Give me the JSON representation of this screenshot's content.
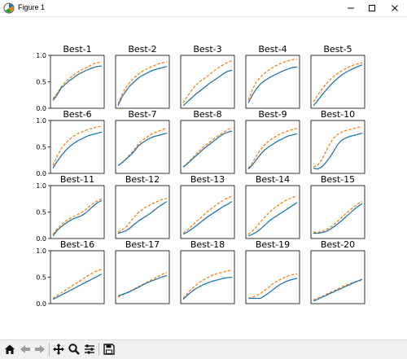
{
  "window": {
    "title": "Figure 1"
  },
  "icons": {
    "app": "matplotlib-icon",
    "minimize": "minimize-icon",
    "maximize": "maximize-icon",
    "close": "close-icon",
    "home": "home-icon",
    "back": "arrow-left-icon",
    "forward": "arrow-right-icon",
    "pan": "move-icon",
    "zoom": "zoom-icon",
    "configure": "sliders-icon",
    "save": "save-icon"
  },
  "colors": {
    "series_solid": "#1f77b4",
    "series_dashed": "#ff7f0e"
  },
  "chart_data": {
    "type": "line",
    "layout": "4x5 grid of subplots",
    "ylim": [
      0,
      1
    ],
    "yticks": [
      "0.0",
      "0.5",
      "1.0"
    ],
    "xticks": "none",
    "series_styles": [
      {
        "style": "solid",
        "color": "#1f77b4"
      },
      {
        "style": "dashed",
        "color": "#ff7f0e"
      }
    ],
    "subplots": [
      {
        "title": "Best-1",
        "solid": [
          0.15,
          0.25,
          0.38,
          0.45,
          0.52,
          0.57,
          0.63,
          0.67,
          0.71,
          0.74,
          0.77,
          0.79,
          0.8
        ],
        "dashed": [
          0.18,
          0.28,
          0.4,
          0.49,
          0.56,
          0.62,
          0.68,
          0.72,
          0.76,
          0.8,
          0.84,
          0.86,
          0.88
        ]
      },
      {
        "title": "Best-2",
        "solid": [
          0.05,
          0.22,
          0.33,
          0.43,
          0.5,
          0.57,
          0.62,
          0.66,
          0.7,
          0.73,
          0.75,
          0.77,
          0.79
        ],
        "dashed": [
          0.08,
          0.27,
          0.4,
          0.5,
          0.58,
          0.64,
          0.7,
          0.74,
          0.78,
          0.81,
          0.84,
          0.86,
          0.88
        ]
      },
      {
        "title": "Best-3",
        "solid": [
          0.05,
          0.12,
          0.19,
          0.26,
          0.32,
          0.38,
          0.44,
          0.5,
          0.55,
          0.6,
          0.66,
          0.7,
          0.72
        ],
        "dashed": [
          0.1,
          0.22,
          0.33,
          0.43,
          0.5,
          0.55,
          0.61,
          0.67,
          0.73,
          0.78,
          0.83,
          0.87,
          0.9
        ]
      },
      {
        "title": "Best-4",
        "solid": [
          0.1,
          0.25,
          0.37,
          0.46,
          0.52,
          0.57,
          0.61,
          0.65,
          0.69,
          0.72,
          0.75,
          0.77,
          0.78
        ],
        "dashed": [
          0.15,
          0.35,
          0.5,
          0.59,
          0.66,
          0.72,
          0.77,
          0.81,
          0.85,
          0.88,
          0.9,
          0.92,
          0.93
        ]
      },
      {
        "title": "Best-5",
        "solid": [
          0.05,
          0.14,
          0.24,
          0.33,
          0.42,
          0.5,
          0.57,
          0.63,
          0.68,
          0.72,
          0.76,
          0.79,
          0.82
        ],
        "dashed": [
          0.12,
          0.24,
          0.35,
          0.45,
          0.53,
          0.6,
          0.66,
          0.71,
          0.75,
          0.79,
          0.82,
          0.84,
          0.86
        ]
      },
      {
        "title": "Best-6",
        "solid": [
          0.1,
          0.22,
          0.33,
          0.42,
          0.5,
          0.56,
          0.61,
          0.65,
          0.69,
          0.72,
          0.74,
          0.76,
          0.78
        ],
        "dashed": [
          0.15,
          0.32,
          0.46,
          0.56,
          0.64,
          0.7,
          0.75,
          0.78,
          0.81,
          0.84,
          0.86,
          0.88,
          0.89
        ]
      },
      {
        "title": "Best-7",
        "solid": [
          0.15,
          0.2,
          0.27,
          0.34,
          0.42,
          0.52,
          0.58,
          0.63,
          0.67,
          0.7,
          0.72,
          0.74,
          0.76
        ],
        "dashed": [
          0.15,
          0.21,
          0.28,
          0.36,
          0.45,
          0.56,
          0.63,
          0.68,
          0.73,
          0.77,
          0.8,
          0.83,
          0.86
        ]
      },
      {
        "title": "Best-8",
        "solid": [
          0.12,
          0.18,
          0.25,
          0.32,
          0.39,
          0.46,
          0.52,
          0.58,
          0.64,
          0.7,
          0.75,
          0.78,
          0.8
        ],
        "dashed": [
          0.12,
          0.19,
          0.27,
          0.35,
          0.43,
          0.5,
          0.56,
          0.62,
          0.68,
          0.73,
          0.78,
          0.83,
          0.87
        ]
      },
      {
        "title": "Best-9",
        "solid": [
          0.08,
          0.16,
          0.26,
          0.36,
          0.44,
          0.5,
          0.55,
          0.6,
          0.64,
          0.68,
          0.71,
          0.73,
          0.75
        ],
        "dashed": [
          0.1,
          0.2,
          0.33,
          0.45,
          0.54,
          0.61,
          0.66,
          0.71,
          0.75,
          0.78,
          0.81,
          0.83,
          0.85
        ]
      },
      {
        "title": "Best-10",
        "solid": [
          0.1,
          0.08,
          0.12,
          0.2,
          0.3,
          0.42,
          0.55,
          0.63,
          0.67,
          0.7,
          0.72,
          0.74,
          0.76
        ],
        "dashed": [
          0.12,
          0.15,
          0.25,
          0.4,
          0.55,
          0.67,
          0.74,
          0.78,
          0.81,
          0.83,
          0.85,
          0.87,
          0.88
        ]
      },
      {
        "title": "Best-11",
        "solid": [
          0.05,
          0.15,
          0.22,
          0.28,
          0.33,
          0.37,
          0.4,
          0.43,
          0.48,
          0.55,
          0.62,
          0.68,
          0.72
        ],
        "dashed": [
          0.08,
          0.18,
          0.26,
          0.32,
          0.37,
          0.41,
          0.45,
          0.49,
          0.54,
          0.61,
          0.67,
          0.72,
          0.75
        ]
      },
      {
        "title": "Best-12",
        "solid": [
          0.1,
          0.12,
          0.15,
          0.2,
          0.27,
          0.33,
          0.38,
          0.43,
          0.48,
          0.54,
          0.6,
          0.65,
          0.7
        ],
        "dashed": [
          0.12,
          0.16,
          0.22,
          0.31,
          0.41,
          0.49,
          0.55,
          0.6,
          0.64,
          0.68,
          0.71,
          0.74,
          0.76
        ]
      },
      {
        "title": "Best-13",
        "solid": [
          0.08,
          0.12,
          0.17,
          0.23,
          0.29,
          0.35,
          0.41,
          0.46,
          0.51,
          0.56,
          0.61,
          0.65,
          0.7
        ],
        "dashed": [
          0.1,
          0.16,
          0.23,
          0.3,
          0.37,
          0.44,
          0.51,
          0.57,
          0.63,
          0.68,
          0.73,
          0.77,
          0.8
        ]
      },
      {
        "title": "Best-14",
        "solid": [
          0.05,
          0.08,
          0.12,
          0.18,
          0.25,
          0.32,
          0.38,
          0.43,
          0.48,
          0.53,
          0.58,
          0.63,
          0.68
        ],
        "dashed": [
          0.08,
          0.14,
          0.22,
          0.31,
          0.4,
          0.48,
          0.55,
          0.61,
          0.66,
          0.71,
          0.75,
          0.78,
          0.8
        ]
      },
      {
        "title": "Best-15",
        "solid": [
          0.1,
          0.1,
          0.11,
          0.13,
          0.17,
          0.22,
          0.28,
          0.34,
          0.41,
          0.48,
          0.55,
          0.61,
          0.66
        ],
        "dashed": [
          0.12,
          0.12,
          0.13,
          0.16,
          0.2,
          0.26,
          0.33,
          0.4,
          0.47,
          0.54,
          0.6,
          0.66,
          0.7
        ]
      },
      {
        "title": "Best-16",
        "solid": [
          0.08,
          0.12,
          0.16,
          0.2,
          0.24,
          0.28,
          0.32,
          0.36,
          0.4,
          0.44,
          0.48,
          0.52,
          0.56
        ],
        "dashed": [
          0.1,
          0.15,
          0.2,
          0.25,
          0.3,
          0.35,
          0.4,
          0.45,
          0.5,
          0.55,
          0.59,
          0.62,
          0.65
        ]
      },
      {
        "title": "Best-17",
        "solid": [
          0.15,
          0.17,
          0.2,
          0.23,
          0.27,
          0.31,
          0.35,
          0.39,
          0.42,
          0.45,
          0.48,
          0.51,
          0.53
        ],
        "dashed": [
          0.12,
          0.16,
          0.2,
          0.24,
          0.28,
          0.32,
          0.36,
          0.4,
          0.44,
          0.48,
          0.52,
          0.56,
          0.59
        ]
      },
      {
        "title": "Best-18",
        "solid": [
          0.08,
          0.16,
          0.22,
          0.28,
          0.32,
          0.36,
          0.39,
          0.42,
          0.44,
          0.46,
          0.48,
          0.49,
          0.5
        ],
        "dashed": [
          0.1,
          0.19,
          0.27,
          0.34,
          0.4,
          0.45,
          0.49,
          0.53,
          0.56,
          0.58,
          0.6,
          0.62,
          0.64
        ]
      },
      {
        "title": "Best-19",
        "solid": [
          0.1,
          0.1,
          0.1,
          0.1,
          0.15,
          0.2,
          0.26,
          0.32,
          0.37,
          0.41,
          0.44,
          0.46,
          0.48
        ],
        "dashed": [
          0.1,
          0.12,
          0.15,
          0.19,
          0.25,
          0.31,
          0.37,
          0.42,
          0.46,
          0.5,
          0.53,
          0.55,
          0.56
        ]
      },
      {
        "title": "Best-20",
        "solid": [
          0.05,
          0.08,
          0.12,
          0.15,
          0.19,
          0.22,
          0.26,
          0.29,
          0.33,
          0.36,
          0.4,
          0.43,
          0.46
        ],
        "dashed": [
          0.07,
          0.1,
          0.13,
          0.17,
          0.21,
          0.24,
          0.28,
          0.32,
          0.35,
          0.38,
          0.41,
          0.43,
          0.45
        ]
      }
    ]
  }
}
